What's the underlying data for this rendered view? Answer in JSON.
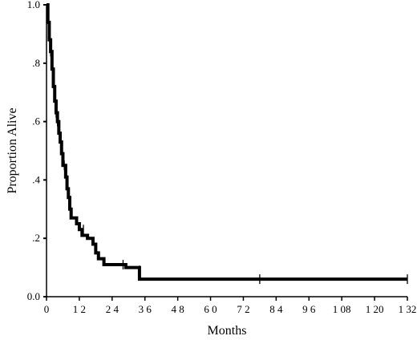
{
  "chart_data": {
    "type": "line",
    "title": "",
    "xlabel": "Months",
    "ylabel": "Proportion Alive",
    "xlim": [
      0,
      132
    ],
    "ylim": [
      0,
      1
    ],
    "x_ticks": [
      0,
      12,
      24,
      36,
      48,
      60,
      72,
      84,
      96,
      108,
      120,
      132
    ],
    "x_tick_labels": [
      "0",
      "1 2",
      "2 4",
      "3 6",
      "4 8",
      "6 0",
      "7 2",
      "8 4",
      "9 6",
      "1 08",
      "1 20",
      "1 32"
    ],
    "y_ticks": [
      0,
      0.2,
      0.4,
      0.6,
      0.8,
      1.0
    ],
    "y_tick_labels": [
      "0.0",
      ".2",
      ".4",
      ".6",
      ".8",
      "1.0"
    ],
    "grid": false,
    "legend": "none",
    "series": [
      {
        "step_points": [
          [
            0,
            1.0
          ],
          [
            0.5,
            0.94
          ],
          [
            1,
            0.88
          ],
          [
            1.5,
            0.84
          ],
          [
            2,
            0.78
          ],
          [
            2.5,
            0.72
          ],
          [
            3,
            0.67
          ],
          [
            3.5,
            0.63
          ],
          [
            4,
            0.6
          ],
          [
            4.5,
            0.56
          ],
          [
            5,
            0.53
          ],
          [
            5.5,
            0.49
          ],
          [
            6,
            0.45
          ],
          [
            7,
            0.41
          ],
          [
            7.5,
            0.37
          ],
          [
            8,
            0.34
          ],
          [
            8.5,
            0.3
          ],
          [
            9,
            0.27
          ],
          [
            11,
            0.25
          ],
          [
            12,
            0.23
          ],
          [
            13,
            0.21
          ],
          [
            15,
            0.2
          ],
          [
            17,
            0.18
          ],
          [
            18,
            0.15
          ],
          [
            19,
            0.13
          ],
          [
            21,
            0.11
          ],
          [
            29,
            0.1
          ],
          [
            34,
            0.06
          ],
          [
            132,
            0.06
          ]
        ],
        "censor_marks": [
          [
            1.5,
            0.84
          ],
          [
            3.5,
            0.63
          ],
          [
            4,
            0.6
          ],
          [
            6.5,
            0.45
          ],
          [
            13.5,
            0.23
          ],
          [
            28,
            0.11
          ],
          [
            34,
            0.09
          ],
          [
            78,
            0.06
          ],
          [
            132,
            0.06
          ]
        ]
      }
    ]
  }
}
